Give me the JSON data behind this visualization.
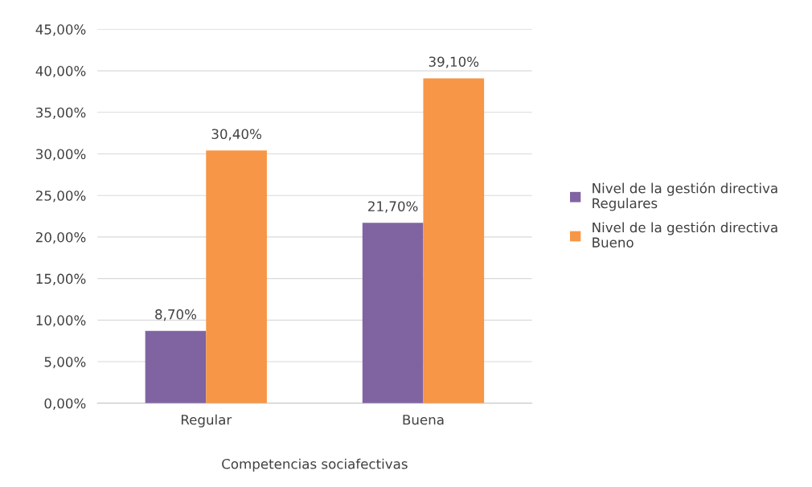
{
  "chart_data": {
    "type": "bar",
    "xlabel": "Competencias sociafectivas",
    "categories": [
      "Regular",
      "Buena"
    ],
    "series": [
      {
        "name": "Nivel de la gestión directiva\nRegulares",
        "color": "#8064a2",
        "values": [
          8.7,
          21.7
        ],
        "value_labels": [
          "8,70%",
          "21,70%"
        ]
      },
      {
        "name": "Nivel de la gestión directiva\nBueno",
        "color": "#f79646",
        "values": [
          30.4,
          39.1
        ],
        "value_labels": [
          "30,40%",
          "39,10%"
        ]
      }
    ],
    "ylim": [
      0,
      45
    ],
    "yticks": [
      {
        "value": 0,
        "label": "0,00%"
      },
      {
        "value": 5,
        "label": "5,00%"
      },
      {
        "value": 10,
        "label": "10,00%"
      },
      {
        "value": 15,
        "label": "15,00%"
      },
      {
        "value": 20,
        "label": "20,00%"
      },
      {
        "value": 25,
        "label": "25,00%"
      },
      {
        "value": 30,
        "label": "30,00%"
      },
      {
        "value": 35,
        "label": "35,00%"
      },
      {
        "value": 40,
        "label": "40,00%"
      },
      {
        "value": 45,
        "label": "45,00%"
      }
    ],
    "grid": "y",
    "legend": "right"
  }
}
